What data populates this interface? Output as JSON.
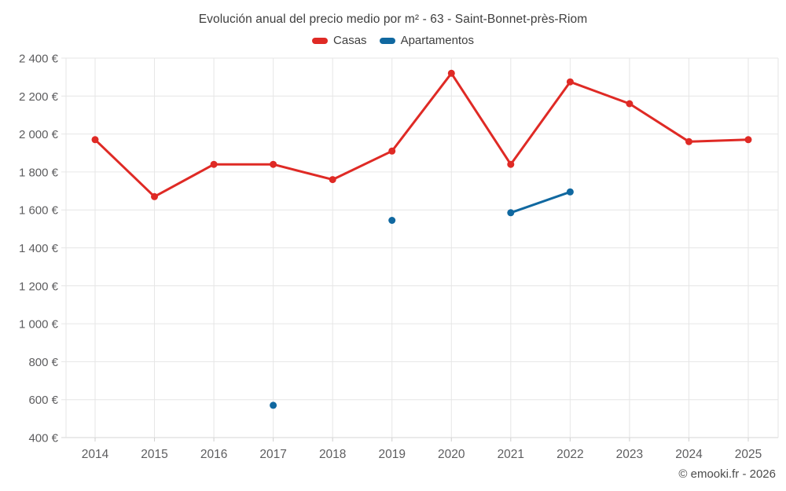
{
  "chart_data": {
    "type": "line",
    "title": "Evolución anual del precio medio por m² - 63 - Saint-Bonnet-près-Riom",
    "categories": [
      2014,
      2015,
      2016,
      2017,
      2018,
      2019,
      2020,
      2021,
      2022,
      2023,
      2024,
      2025
    ],
    "series": [
      {
        "name": "Casas",
        "color": "#df2a25",
        "values": [
          1970,
          1670,
          1840,
          1840,
          1760,
          1910,
          2320,
          1840,
          2275,
          2160,
          1960,
          1970
        ]
      },
      {
        "name": "Apartamentos",
        "color": "#1068a0",
        "values": [
          null,
          null,
          null,
          570,
          null,
          1545,
          null,
          1585,
          1695,
          null,
          null,
          null
        ]
      }
    ],
    "y_axis": {
      "min": 400,
      "max": 2400,
      "step": 200,
      "tick_labels": [
        "400 €",
        "600 €",
        "800 €",
        "1 000 €",
        "1 200 €",
        "1 400 €",
        "1 600 €",
        "1 800 €",
        "2 000 €",
        "2 200 €",
        "2 400 €"
      ]
    },
    "grid": true,
    "legend_position": "top",
    "connect_nulls": false,
    "currency_suffix": "€"
  },
  "footer": {
    "credit": "© emooki.fr - 2026"
  },
  "colors": {
    "grid": "#e6e6e6",
    "baseline": "#d4d4d4",
    "tick": "#cfcfcf",
    "axis_text": "#5d5d5f",
    "title_text": "#3e3e3e",
    "footer_text": "#4b4b4b"
  }
}
